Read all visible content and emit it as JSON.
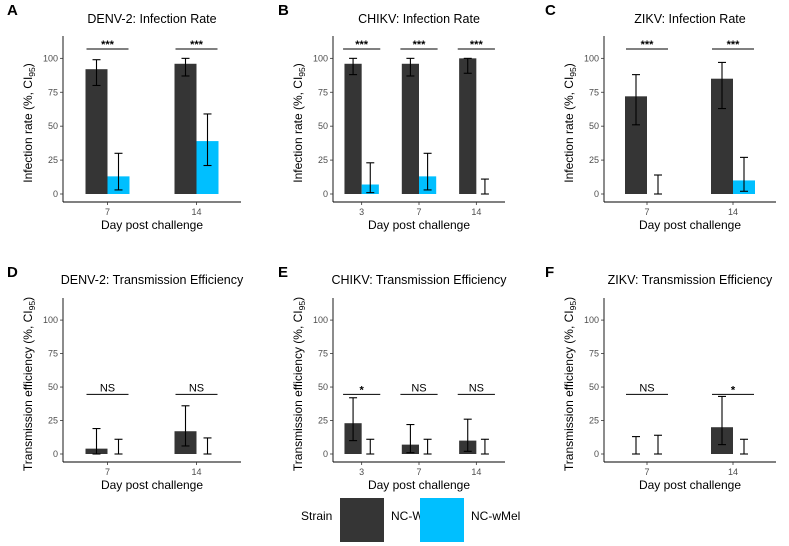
{
  "colors": {
    "NC-WT": "#353535",
    "NC-wMel": "#00bfff"
  },
  "legend": {
    "title": "Strain",
    "items": [
      "NC-WT",
      "NC-wMel"
    ]
  },
  "chart_data": [
    {
      "panel": "A",
      "type": "bar",
      "title": "DENV-2: Infection Rate",
      "xlabel": "Day post challenge",
      "ylabel": "Infection rate (%, CI95)",
      "ylim": [
        0,
        115
      ],
      "yticks": [
        0,
        25,
        50,
        75,
        100
      ],
      "categories": [
        "7",
        "14"
      ],
      "series": [
        {
          "name": "NC-WT",
          "values": [
            92,
            96
          ],
          "lower": [
            80,
            87
          ],
          "upper": [
            99,
            100
          ]
        },
        {
          "name": "NC-wMel",
          "values": [
            13,
            39
          ],
          "lower": [
            3,
            21
          ],
          "upper": [
            30,
            59
          ]
        }
      ],
      "significance": [
        "***",
        "***"
      ]
    },
    {
      "panel": "B",
      "type": "bar",
      "title": "CHIKV: Infection Rate",
      "xlabel": "Day post challenge",
      "ylabel": "Infection rate (%, CI95)",
      "ylim": [
        0,
        115
      ],
      "yticks": [
        0,
        25,
        50,
        75,
        100
      ],
      "categories": [
        "3",
        "7",
        "14"
      ],
      "series": [
        {
          "name": "NC-WT",
          "values": [
            96,
            96,
            100
          ],
          "lower": [
            88,
            87,
            89
          ],
          "upper": [
            100,
            100,
            100
          ]
        },
        {
          "name": "NC-wMel",
          "values": [
            7,
            13,
            0
          ],
          "lower": [
            1,
            3,
            0
          ],
          "upper": [
            23,
            30,
            11
          ]
        }
      ],
      "significance": [
        "***",
        "***",
        "***"
      ]
    },
    {
      "panel": "C",
      "type": "bar",
      "title": "ZIKV: Infection Rate",
      "xlabel": "Day post challenge",
      "ylabel": "Infection rate (%, CI95)",
      "ylim": [
        0,
        115
      ],
      "yticks": [
        0,
        25,
        50,
        75,
        100
      ],
      "categories": [
        "7",
        "14"
      ],
      "series": [
        {
          "name": "NC-WT",
          "values": [
            72,
            85
          ],
          "lower": [
            51,
            63
          ],
          "upper": [
            88,
            97
          ]
        },
        {
          "name": "NC-wMel",
          "values": [
            0,
            10
          ],
          "lower": [
            0,
            2
          ],
          "upper": [
            14,
            27
          ]
        }
      ],
      "significance": [
        "***",
        "***"
      ]
    },
    {
      "panel": "D",
      "type": "bar",
      "title": "DENV-2: Transmission Efficiency",
      "xlabel": "Day post challenge",
      "ylabel": "Transmission efficiency (%, CI95)",
      "ylim": [
        0,
        115
      ],
      "yticks": [
        0,
        25,
        50,
        75,
        100
      ],
      "categories": [
        "7",
        "14"
      ],
      "series": [
        {
          "name": "NC-WT",
          "values": [
            4,
            17
          ],
          "lower": [
            0,
            6
          ],
          "upper": [
            19,
            36
          ]
        },
        {
          "name": "NC-wMel",
          "values": [
            0,
            0
          ],
          "lower": [
            0,
            0
          ],
          "upper": [
            11,
            12
          ]
        }
      ],
      "significance": [
        "NS",
        "NS"
      ]
    },
    {
      "panel": "E",
      "type": "bar",
      "title": "CHIKV: Transmission Efficiency",
      "xlabel": "Day post challenge",
      "ylabel": "Transmission efficiency (%, CI95)",
      "ylim": [
        0,
        115
      ],
      "yticks": [
        0,
        25,
        50,
        75,
        100
      ],
      "categories": [
        "3",
        "7",
        "14"
      ],
      "series": [
        {
          "name": "NC-WT",
          "values": [
            23,
            7,
            10
          ],
          "lower": [
            10,
            1,
            2
          ],
          "upper": [
            42,
            22,
            26
          ]
        },
        {
          "name": "NC-wMel",
          "values": [
            0,
            0,
            0
          ],
          "lower": [
            0,
            0,
            0
          ],
          "upper": [
            11,
            11,
            11
          ]
        }
      ],
      "significance": [
        "*",
        "NS",
        "NS"
      ]
    },
    {
      "panel": "F",
      "type": "bar",
      "title": "ZIKV: Transmission Efficiency",
      "xlabel": "Day post challenge",
      "ylabel": "Transmission efficiency (%, CI95)",
      "ylim": [
        0,
        115
      ],
      "yticks": [
        0,
        25,
        50,
        75,
        100
      ],
      "categories": [
        "7",
        "14"
      ],
      "series": [
        {
          "name": "NC-WT",
          "values": [
            0,
            20
          ],
          "lower": [
            0,
            7
          ],
          "upper": [
            13,
            43
          ]
        },
        {
          "name": "NC-wMel",
          "values": [
            0,
            0
          ],
          "lower": [
            0,
            0
          ],
          "upper": [
            14,
            11
          ]
        }
      ],
      "significance": [
        "NS",
        "*"
      ]
    }
  ]
}
